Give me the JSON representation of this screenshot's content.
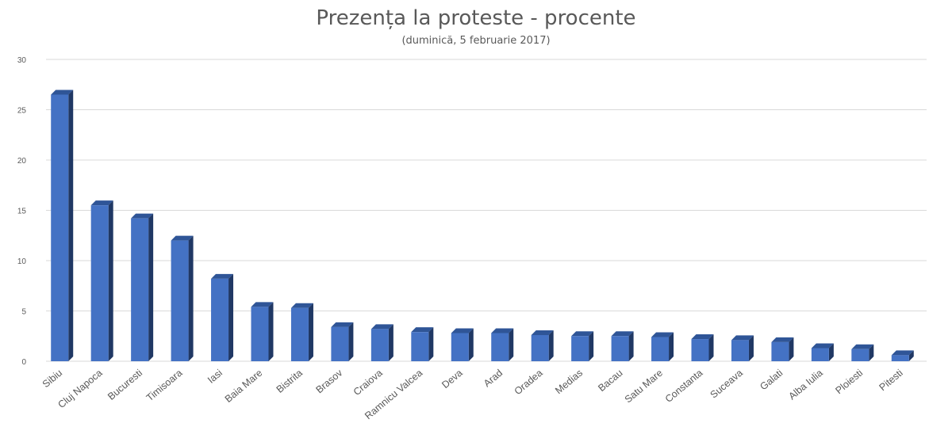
{
  "title": "Prezența la proteste - procente",
  "subtitle": "(duminică, 5 februarie 2017)",
  "chart_data": {
    "type": "bar",
    "title": "Prezența la proteste - procente",
    "subtitle": "(duminică, 5 februarie 2017)",
    "xlabel": "",
    "ylabel": "",
    "ylim": [
      0,
      30
    ],
    "yticks": [
      0,
      5,
      10,
      15,
      20,
      25,
      30
    ],
    "grid": true,
    "legend": "none",
    "bar_color": "#4472C4",
    "categories": [
      "Sibiu",
      "Cluj Napoca",
      "Bucuresti",
      "Timisoara",
      "Iasi",
      "Baia Mare",
      "Bistrita",
      "Brasov",
      "Craiova",
      "Ramnicu Valcea",
      "Deva",
      "Arad",
      "Oradea",
      "Medias",
      "Bacau",
      "Satu Mare",
      "Constanta",
      "Suceava",
      "Galati",
      "Alba Iulia",
      "Ploiesti",
      "Pitesti"
    ],
    "values": [
      26.5,
      15.5,
      14.2,
      12.0,
      8.2,
      5.4,
      5.3,
      3.4,
      3.2,
      2.9,
      2.8,
      2.8,
      2.6,
      2.5,
      2.5,
      2.4,
      2.2,
      2.1,
      1.9,
      1.3,
      1.2,
      0.6
    ]
  }
}
